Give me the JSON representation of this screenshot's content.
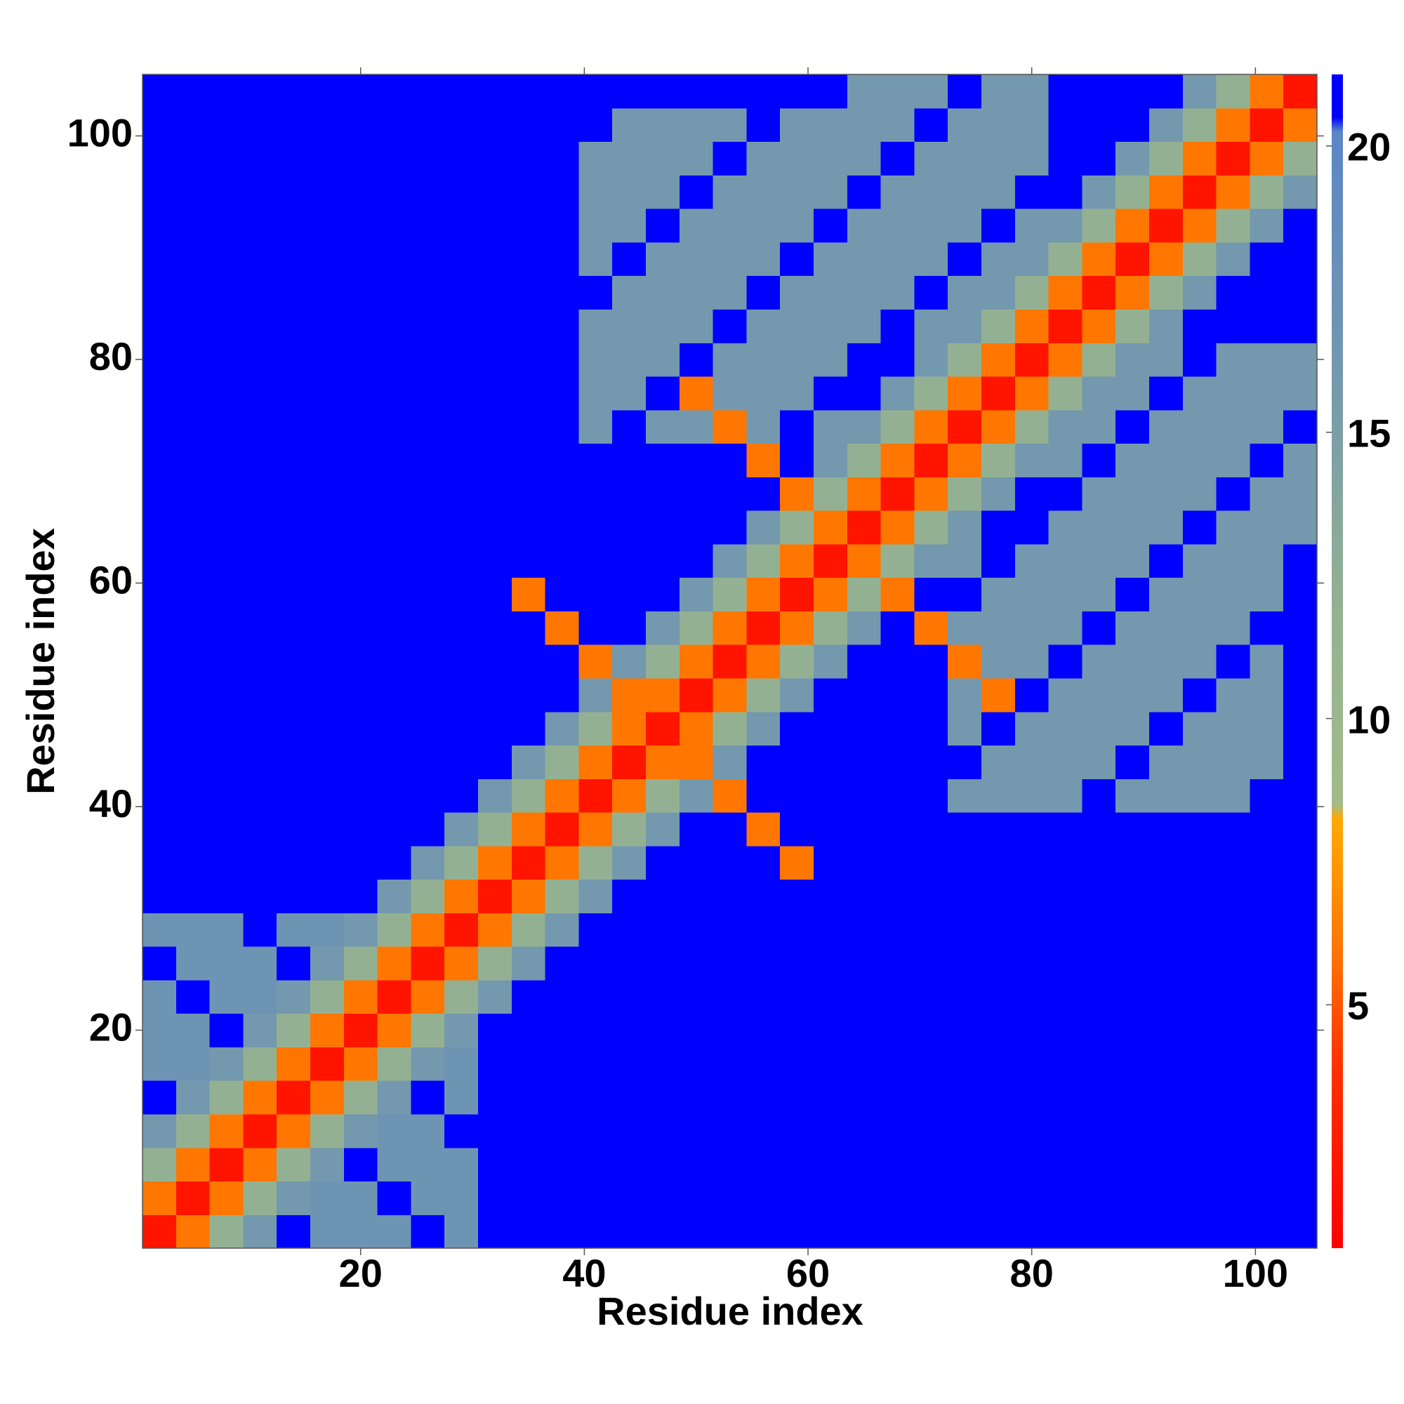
{
  "chart_data": {
    "type": "heatmap",
    "xlabel": "Residue index",
    "ylabel": "Residue index",
    "xlim": [
      0.5,
      105.5
    ],
    "ylim": [
      0.5,
      105.5
    ],
    "xticks": [
      20,
      40,
      60,
      80,
      100
    ],
    "yticks": [
      20,
      40,
      60,
      80,
      100
    ],
    "zlim": [
      0.75,
      21.25
    ],
    "zticks": [
      5,
      10,
      15,
      20
    ],
    "colorscale": [
      {
        "value": 0.75,
        "color": "#ff0000"
      },
      {
        "value": 4,
        "color": "#ff3300"
      },
      {
        "value": 6,
        "color": "#ff7700"
      },
      {
        "value": 8.25,
        "color": "#ffaa00"
      },
      {
        "value": 8.5,
        "color": "#a3bb89"
      },
      {
        "value": 12,
        "color": "#93b192"
      },
      {
        "value": 16,
        "color": "#7498ae"
      },
      {
        "value": 20.25,
        "color": "#5b86c6"
      },
      {
        "value": 20.5,
        "color": "#0000ff"
      },
      {
        "value": 21.25,
        "color": "#0000ff"
      }
    ],
    "x": [
      2,
      5,
      8,
      11,
      14,
      17,
      20,
      23,
      26,
      29,
      32,
      35,
      38,
      41,
      44,
      47,
      50,
      53,
      56,
      59,
      62,
      65,
      68,
      71,
      74,
      77,
      80,
      83,
      86,
      89,
      92,
      95,
      98,
      101,
      104
    ],
    "y": [
      2,
      5,
      8,
      11,
      14,
      17,
      20,
      23,
      26,
      29,
      32,
      35,
      38,
      41,
      44,
      47,
      50,
      53,
      56,
      59,
      62,
      65,
      68,
      71,
      74,
      77,
      80,
      83,
      86,
      89,
      92,
      95,
      98,
      101,
      104
    ],
    "z": [
      [
        2,
        6,
        12,
        16,
        22,
        17,
        17,
        17,
        22,
        17,
        22,
        22,
        22,
        22,
        22,
        22,
        22,
        22,
        22,
        22,
        22,
        22,
        22,
        22,
        22,
        22,
        22,
        22,
        22,
        22,
        22,
        22,
        22,
        22,
        22
      ],
      [
        6,
        2,
        6,
        12,
        16,
        17,
        17,
        22,
        17,
        17,
        22,
        22,
        22,
        22,
        22,
        22,
        22,
        22,
        22,
        22,
        22,
        22,
        22,
        22,
        22,
        22,
        22,
        22,
        22,
        22,
        22,
        22,
        22,
        22,
        22
      ],
      [
        12,
        6,
        2,
        6,
        12,
        16,
        22,
        17,
        17,
        17,
        22,
        22,
        22,
        22,
        22,
        22,
        22,
        22,
        22,
        22,
        22,
        22,
        22,
        22,
        22,
        22,
        22,
        22,
        22,
        22,
        22,
        22,
        22,
        22,
        22
      ],
      [
        16,
        12,
        6,
        2,
        6,
        12,
        16,
        17,
        17,
        22,
        22,
        22,
        22,
        22,
        22,
        22,
        22,
        22,
        22,
        22,
        22,
        22,
        22,
        22,
        22,
        22,
        22,
        22,
        22,
        22,
        22,
        22,
        22,
        22,
        22
      ],
      [
        22,
        16,
        12,
        6,
        2,
        6,
        12,
        16,
        22,
        17,
        22,
        22,
        22,
        22,
        22,
        22,
        22,
        22,
        22,
        22,
        22,
        22,
        22,
        22,
        22,
        22,
        22,
        22,
        22,
        22,
        22,
        22,
        22,
        22,
        22
      ],
      [
        17,
        17,
        16,
        12,
        6,
        2,
        6,
        12,
        16,
        17,
        22,
        22,
        22,
        22,
        22,
        22,
        22,
        22,
        22,
        22,
        22,
        22,
        22,
        22,
        22,
        22,
        22,
        22,
        22,
        22,
        22,
        22,
        22,
        22,
        22
      ],
      [
        17,
        17,
        22,
        16,
        12,
        6,
        2,
        6,
        12,
        16,
        22,
        22,
        22,
        22,
        22,
        22,
        22,
        22,
        22,
        22,
        22,
        22,
        22,
        22,
        22,
        22,
        22,
        22,
        22,
        22,
        22,
        22,
        22,
        22,
        22
      ],
      [
        17,
        22,
        17,
        17,
        16,
        12,
        6,
        2,
        6,
        12,
        16,
        22,
        22,
        22,
        22,
        22,
        22,
        22,
        22,
        22,
        22,
        22,
        22,
        22,
        22,
        22,
        22,
        22,
        22,
        22,
        22,
        22,
        22,
        22,
        22
      ],
      [
        22,
        17,
        17,
        17,
        22,
        16,
        12,
        6,
        2,
        6,
        12,
        16,
        22,
        22,
        22,
        22,
        22,
        22,
        22,
        22,
        22,
        22,
        22,
        22,
        22,
        22,
        22,
        22,
        22,
        22,
        22,
        22,
        22,
        22,
        22
      ],
      [
        17,
        17,
        17,
        22,
        17,
        17,
        16,
        12,
        6,
        2,
        6,
        12,
        16,
        22,
        22,
        22,
        22,
        22,
        22,
        22,
        22,
        22,
        22,
        22,
        22,
        22,
        22,
        22,
        22,
        22,
        22,
        22,
        22,
        22,
        22
      ],
      [
        22,
        22,
        22,
        22,
        22,
        22,
        22,
        16,
        12,
        6,
        2,
        6,
        12,
        16,
        22,
        22,
        22,
        22,
        22,
        22,
        22,
        22,
        22,
        22,
        22,
        22,
        22,
        22,
        22,
        22,
        22,
        22,
        22,
        22,
        22
      ],
      [
        22,
        22,
        22,
        22,
        22,
        22,
        22,
        22,
        16,
        12,
        6,
        2,
        6,
        12,
        16,
        22,
        22,
        22,
        22,
        6,
        22,
        22,
        22,
        22,
        22,
        22,
        22,
        22,
        22,
        22,
        22,
        22,
        22,
        22,
        22
      ],
      [
        22,
        22,
        22,
        22,
        22,
        22,
        22,
        22,
        22,
        16,
        12,
        6,
        2,
        6,
        12,
        16,
        22,
        22,
        6,
        22,
        22,
        22,
        22,
        22,
        22,
        22,
        22,
        22,
        22,
        22,
        22,
        22,
        22,
        22,
        22
      ],
      [
        22,
        22,
        22,
        22,
        22,
        22,
        22,
        22,
        22,
        22,
        16,
        12,
        6,
        2,
        6,
        12,
        16,
        6,
        22,
        22,
        22,
        22,
        22,
        22,
        16,
        16,
        16,
        16,
        22,
        16,
        16,
        16,
        16,
        22,
        22
      ],
      [
        22,
        22,
        22,
        22,
        22,
        22,
        22,
        22,
        22,
        22,
        22,
        16,
        12,
        6,
        2,
        6,
        6,
        16,
        22,
        22,
        22,
        22,
        22,
        22,
        22,
        16,
        16,
        16,
        16,
        22,
        16,
        16,
        16,
        16,
        22
      ],
      [
        22,
        22,
        22,
        22,
        22,
        22,
        22,
        22,
        22,
        22,
        22,
        22,
        16,
        12,
        6,
        2,
        6,
        12,
        16,
        22,
        22,
        22,
        22,
        22,
        16,
        22,
        16,
        16,
        16,
        16,
        22,
        16,
        16,
        16,
        22
      ],
      [
        22,
        22,
        22,
        22,
        22,
        22,
        22,
        22,
        22,
        22,
        22,
        22,
        22,
        16,
        6,
        6,
        2,
        6,
        12,
        16,
        22,
        22,
        22,
        22,
        16,
        6,
        22,
        16,
        16,
        16,
        16,
        22,
        16,
        16,
        22
      ],
      [
        22,
        22,
        22,
        22,
        22,
        22,
        22,
        22,
        22,
        22,
        22,
        22,
        22,
        6,
        16,
        12,
        6,
        2,
        6,
        12,
        16,
        22,
        22,
        22,
        6,
        16,
        16,
        22,
        16,
        16,
        16,
        16,
        22,
        16,
        22
      ],
      [
        22,
        22,
        22,
        22,
        22,
        22,
        22,
        22,
        22,
        22,
        22,
        22,
        6,
        22,
        22,
        16,
        12,
        6,
        2,
        6,
        12,
        16,
        22,
        6,
        16,
        16,
        16,
        16,
        22,
        16,
        16,
        16,
        16,
        22,
        22
      ],
      [
        22,
        22,
        22,
        22,
        22,
        22,
        22,
        22,
        22,
        22,
        22,
        6,
        22,
        22,
        22,
        22,
        16,
        12,
        6,
        2,
        6,
        12,
        6,
        22,
        22,
        16,
        16,
        16,
        16,
        22,
        16,
        16,
        16,
        16,
        22
      ],
      [
        22,
        22,
        22,
        22,
        22,
        22,
        22,
        22,
        22,
        22,
        22,
        22,
        22,
        22,
        22,
        22,
        22,
        16,
        12,
        6,
        2,
        6,
        12,
        16,
        16,
        22,
        16,
        16,
        16,
        16,
        22,
        16,
        16,
        16,
        22
      ],
      [
        22,
        22,
        22,
        22,
        22,
        22,
        22,
        22,
        22,
        22,
        22,
        22,
        22,
        22,
        22,
        22,
        22,
        22,
        16,
        12,
        6,
        2,
        6,
        12,
        16,
        22,
        22,
        16,
        16,
        16,
        16,
        22,
        16,
        16,
        16
      ],
      [
        22,
        22,
        22,
        22,
        22,
        22,
        22,
        22,
        22,
        22,
        22,
        22,
        22,
        22,
        22,
        22,
        22,
        22,
        22,
        6,
        12,
        6,
        2,
        6,
        12,
        16,
        22,
        22,
        16,
        16,
        16,
        16,
        22,
        16,
        16
      ],
      [
        22,
        22,
        22,
        22,
        22,
        22,
        22,
        22,
        22,
        22,
        22,
        22,
        22,
        22,
        22,
        22,
        22,
        22,
        6,
        22,
        16,
        12,
        6,
        2,
        6,
        12,
        16,
        16,
        22,
        16,
        16,
        16,
        16,
        22,
        16
      ],
      [
        22,
        22,
        22,
        22,
        22,
        22,
        22,
        22,
        22,
        22,
        22,
        22,
        22,
        16,
        22,
        16,
        16,
        6,
        16,
        22,
        16,
        16,
        12,
        6,
        2,
        6,
        12,
        16,
        16,
        22,
        16,
        16,
        16,
        16,
        22
      ],
      [
        22,
        22,
        22,
        22,
        22,
        22,
        22,
        22,
        22,
        22,
        22,
        22,
        22,
        16,
        16,
        22,
        6,
        16,
        16,
        16,
        22,
        22,
        16,
        12,
        6,
        2,
        6,
        12,
        16,
        16,
        22,
        16,
        16,
        16,
        16
      ],
      [
        22,
        22,
        22,
        22,
        22,
        22,
        22,
        22,
        22,
        22,
        22,
        22,
        22,
        16,
        16,
        16,
        22,
        16,
        16,
        16,
        16,
        22,
        22,
        16,
        12,
        6,
        2,
        6,
        12,
        16,
        16,
        22,
        16,
        16,
        16
      ],
      [
        22,
        22,
        22,
        22,
        22,
        22,
        22,
        22,
        22,
        22,
        22,
        22,
        22,
        16,
        16,
        16,
        16,
        22,
        16,
        16,
        16,
        16,
        22,
        16,
        16,
        12,
        6,
        2,
        6,
        12,
        16,
        22,
        22,
        22,
        22
      ],
      [
        22,
        22,
        22,
        22,
        22,
        22,
        22,
        22,
        22,
        22,
        22,
        22,
        22,
        22,
        16,
        16,
        16,
        16,
        22,
        16,
        16,
        16,
        16,
        22,
        16,
        16,
        12,
        6,
        2,
        6,
        12,
        16,
        22,
        22,
        22
      ],
      [
        22,
        22,
        22,
        22,
        22,
        22,
        22,
        22,
        22,
        22,
        22,
        22,
        22,
        16,
        22,
        16,
        16,
        16,
        16,
        22,
        16,
        16,
        16,
        16,
        22,
        16,
        16,
        12,
        6,
        2,
        6,
        12,
        16,
        22,
        22
      ],
      [
        22,
        22,
        22,
        22,
        22,
        22,
        22,
        22,
        22,
        22,
        22,
        22,
        22,
        16,
        16,
        22,
        16,
        16,
        16,
        16,
        22,
        16,
        16,
        16,
        16,
        22,
        16,
        16,
        12,
        6,
        2,
        6,
        12,
        16,
        22
      ],
      [
        22,
        22,
        22,
        22,
        22,
        22,
        22,
        22,
        22,
        22,
        22,
        22,
        22,
        16,
        16,
        16,
        22,
        16,
        16,
        16,
        16,
        22,
        16,
        16,
        16,
        16,
        22,
        22,
        16,
        12,
        6,
        2,
        6,
        12,
        16
      ],
      [
        22,
        22,
        22,
        22,
        22,
        22,
        22,
        22,
        22,
        22,
        22,
        22,
        22,
        16,
        16,
        16,
        16,
        22,
        16,
        16,
        16,
        16,
        22,
        16,
        16,
        16,
        16,
        22,
        22,
        16,
        12,
        6,
        2,
        6,
        12
      ],
      [
        22,
        22,
        22,
        22,
        22,
        22,
        22,
        22,
        22,
        22,
        22,
        22,
        22,
        22,
        16,
        16,
        16,
        16,
        22,
        16,
        16,
        16,
        16,
        22,
        16,
        16,
        16,
        22,
        22,
        22,
        16,
        12,
        6,
        2,
        6
      ],
      [
        22,
        22,
        22,
        22,
        22,
        22,
        22,
        22,
        22,
        22,
        22,
        22,
        22,
        22,
        22,
        22,
        22,
        22,
        22,
        22,
        22,
        16,
        16,
        16,
        22,
        16,
        16,
        22,
        22,
        22,
        22,
        16,
        12,
        6,
        2
      ]
    ]
  }
}
